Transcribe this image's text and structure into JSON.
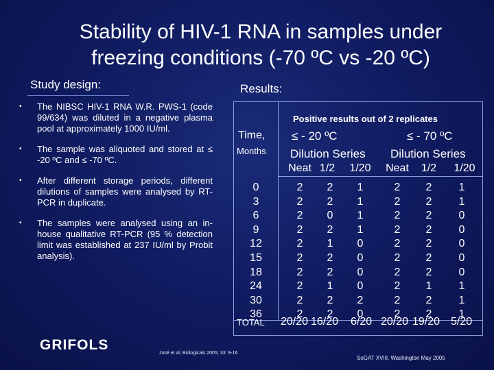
{
  "title": {
    "line1": "Stability of HIV-1 RNA in samples under",
    "line2": "freezing conditions (-70 ºC vs -20 ºC)"
  },
  "study_heading": "Study design:",
  "results_heading": "Results:",
  "bullets": [
    "The NIBSC HIV-1 RNA W.R. PWS-1 (code 99/634) was diluted in a negative plasma pool at approximately 1000 IU/ml.",
    "The sample was aliquoted and stored at ≤ -20 ºC and ≤ -70 ºC.",
    "After different storage periods, different dilutions of samples were analysed by RT-PCR in duplicate.",
    "The samples were analysed using an in-house qualitative RT-PCR (95 % detection limit was established at 237 IU/ml by Probit analysis)."
  ],
  "table": {
    "caption": "Positive results out of 2 replicates",
    "time_label": "Time,",
    "months_label": "Months",
    "group1": "≤ - 20 ºC",
    "group2": "≤ - 70 ºC",
    "dilution_label": "Dilution Series",
    "cols": [
      "Neat",
      "1/2",
      "1/20",
      "Neat",
      "1/2",
      "1/20"
    ],
    "months": [
      "0",
      "3",
      "6",
      "9",
      "12",
      "15",
      "18",
      "24",
      "30",
      "36"
    ],
    "rows": [
      [
        "2",
        "2",
        "1",
        "2",
        "2",
        "1"
      ],
      [
        "2",
        "2",
        "1",
        "2",
        "2",
        "1"
      ],
      [
        "2",
        "0",
        "1",
        "2",
        "2",
        "0"
      ],
      [
        "2",
        "2",
        "1",
        "2",
        "2",
        "0"
      ],
      [
        "2",
        "1",
        "0",
        "2",
        "2",
        "0"
      ],
      [
        "2",
        "2",
        "0",
        "2",
        "2",
        "0"
      ],
      [
        "2",
        "2",
        "0",
        "2",
        "2",
        "0"
      ],
      [
        "2",
        "1",
        "0",
        "2",
        "1",
        "1"
      ],
      [
        "2",
        "2",
        "2",
        "2",
        "2",
        "1"
      ],
      [
        "2",
        "2",
        "0",
        "2",
        "2",
        "1"
      ]
    ],
    "total_label": "TOTAL",
    "totals": [
      "20/20",
      "16/20",
      "6/20",
      "20/20",
      "19/20",
      "5/20"
    ]
  },
  "logo": "GRIFOLS",
  "citation": "José et al, Biologicals 2005; 33: 9-16",
  "conference": "SoGAT XVIII, Washington  May 2005"
}
